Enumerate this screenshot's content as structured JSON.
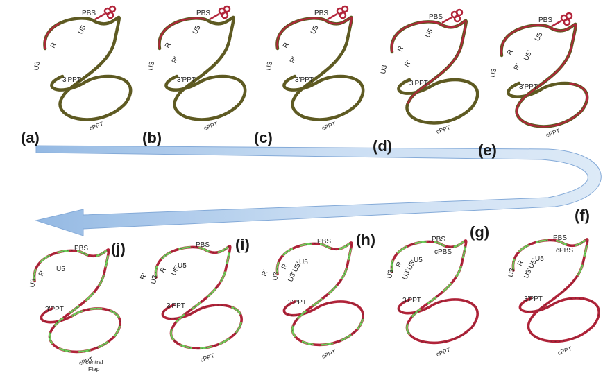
{
  "panels": [
    {
      "id": "a",
      "label": "(a)"
    },
    {
      "id": "b",
      "label": "(b)"
    },
    {
      "id": "c",
      "label": "(c)"
    },
    {
      "id": "d",
      "label": "(d)"
    },
    {
      "id": "e",
      "label": "(e)"
    },
    {
      "id": "f",
      "label": "(f)"
    },
    {
      "id": "g",
      "label": "(g)"
    },
    {
      "id": "h",
      "label": "(h)"
    },
    {
      "id": "i",
      "label": "(i)"
    },
    {
      "id": "j",
      "label": "(j)"
    }
  ],
  "labels": {
    "pbs": "PBS",
    "u5": "U5",
    "u5p": "U5'",
    "u3": "U3",
    "u3p": "U3'",
    "r": "R",
    "rp": "R'",
    "ppt3": "3'PPT",
    "cppt": "cPPT",
    "cpbs": "cPBS",
    "central": "central",
    "flap": "Flap"
  },
  "colors": {
    "rna_strand": "#5e5a22",
    "minus_dna": "#b2243a",
    "plus_dna": "#6fcf5a",
    "arrow": "#a9c8ea"
  }
}
